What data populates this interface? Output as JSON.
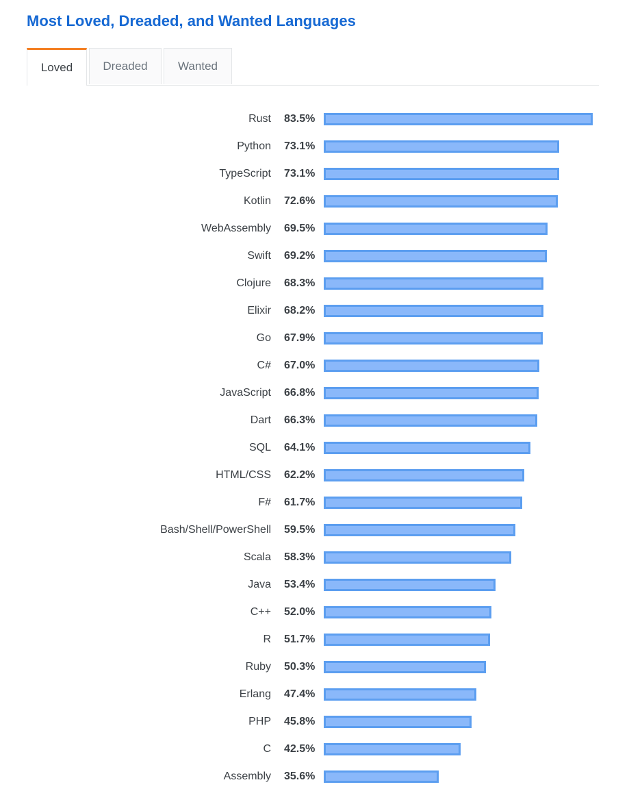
{
  "title": "Most Loved, Dreaded, and Wanted Languages",
  "tabs": {
    "loved": "Loved",
    "dreaded": "Dreaded",
    "wanted": "Wanted",
    "active": "loved"
  },
  "colors": {
    "title": "#1769d3",
    "active_tab_accent": "#f48024",
    "bar_fill": "#8ab8fa",
    "bar_border": "#5c9ef0"
  },
  "chart_data": {
    "type": "bar",
    "orientation": "horizontal",
    "categories": [
      "Rust",
      "Python",
      "TypeScript",
      "Kotlin",
      "WebAssembly",
      "Swift",
      "Clojure",
      "Elixir",
      "Go",
      "C#",
      "JavaScript",
      "Dart",
      "SQL",
      "HTML/CSS",
      "F#",
      "Bash/Shell/PowerShell",
      "Scala",
      "Java",
      "C++",
      "R",
      "Ruby",
      "Erlang",
      "PHP",
      "C",
      "Assembly"
    ],
    "values": [
      83.5,
      73.1,
      73.1,
      72.6,
      69.5,
      69.2,
      68.3,
      68.2,
      67.9,
      67.0,
      66.8,
      66.3,
      64.1,
      62.2,
      61.7,
      59.5,
      58.3,
      53.4,
      52.0,
      51.7,
      50.3,
      47.4,
      45.8,
      42.5,
      35.6
    ],
    "labels": [
      "83.5%",
      "73.1%",
      "73.1%",
      "72.6%",
      "69.5%",
      "69.2%",
      "68.3%",
      "68.2%",
      "67.9%",
      "67.0%",
      "66.8%",
      "66.3%",
      "64.1%",
      "62.2%",
      "61.7%",
      "59.5%",
      "58.3%",
      "53.4%",
      "52.0%",
      "51.7%",
      "50.3%",
      "47.4%",
      "45.8%",
      "42.5%",
      "35.6%"
    ],
    "unit": "%",
    "xlim": [
      0,
      83.5
    ],
    "grid": false,
    "legend": "none"
  }
}
